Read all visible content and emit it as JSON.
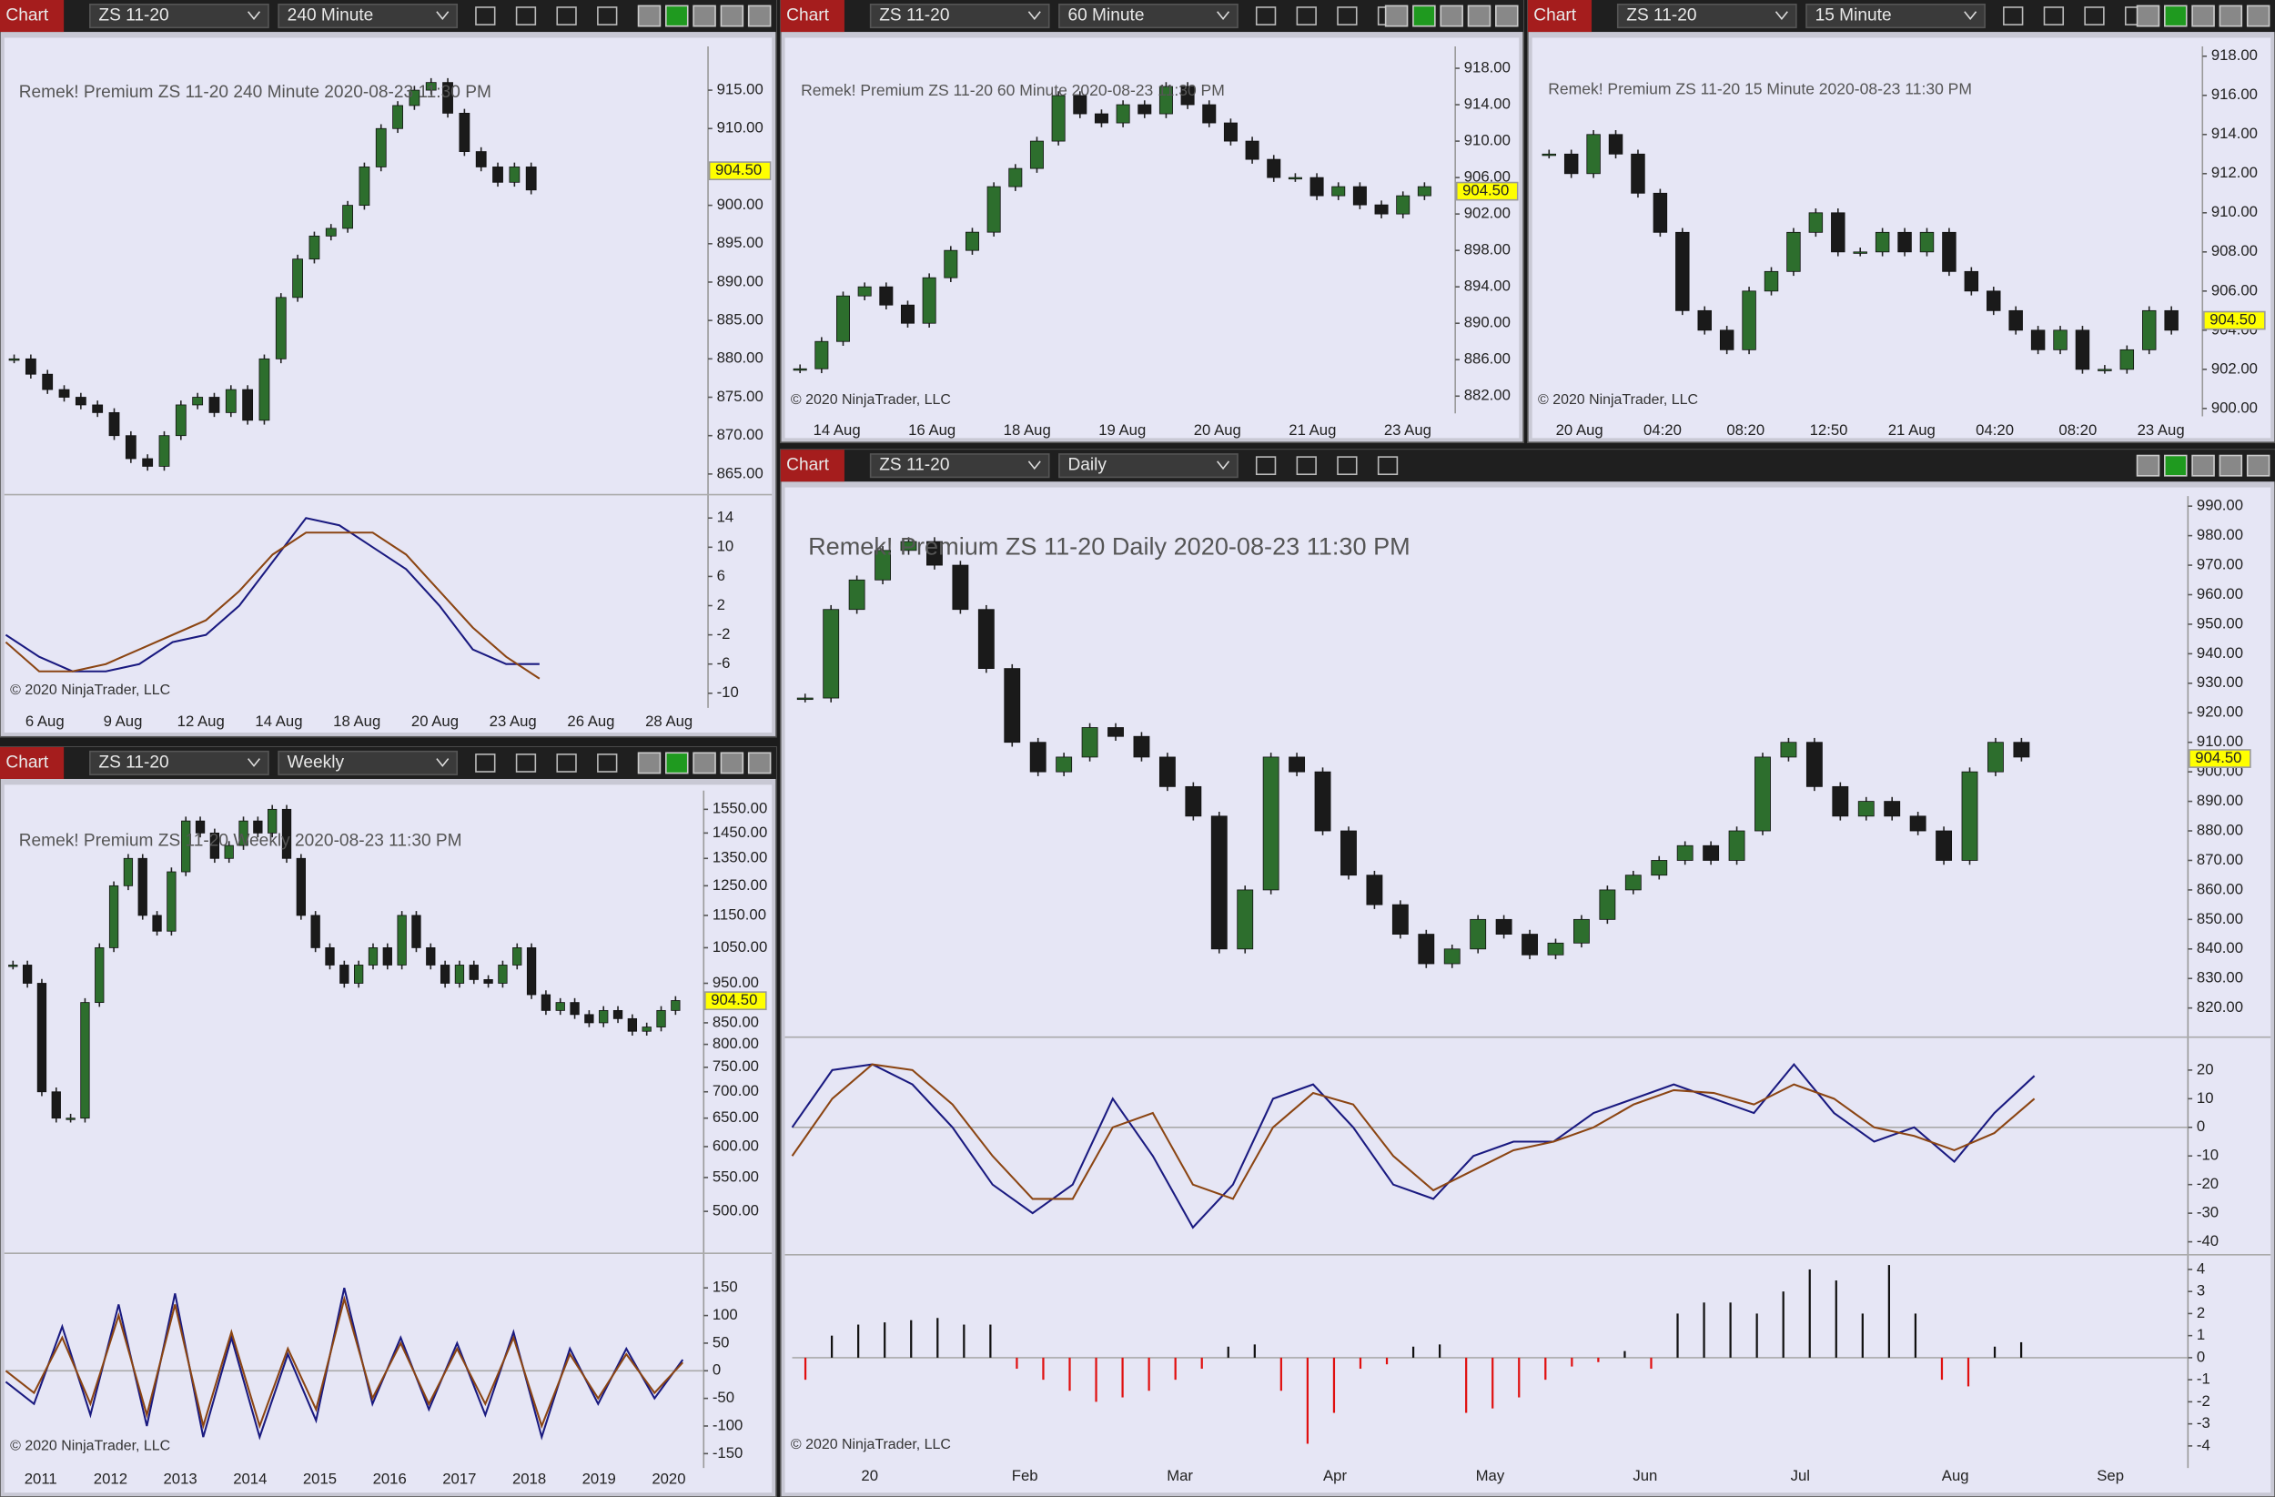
{
  "windows": [
    {
      "app_label": "Chart",
      "instrument": "ZS 11-20",
      "interval": "240 Minute",
      "header": "Remek!  Premium  ZS 11-20  240 Minute  2020-08-23 11:30 PM",
      "copyright": "© 2020 NinjaTrader, LLC",
      "last_price": {
        "value": 904.5,
        "label": "904.50"
      },
      "time_labels": [
        "6 Aug",
        "9 Aug",
        "12 Aug",
        "14 Aug",
        "18 Aug",
        "20 Aug",
        "23 Aug",
        "26 Aug",
        "28 Aug"
      ],
      "price": {
        "ylim": [
          862.5,
          920.7
        ],
        "yticks": [
          {
            "value": 915,
            "label": "915.00"
          },
          {
            "value": 910,
            "label": "910.00"
          },
          {
            "value": 900,
            "label": "900.00"
          },
          {
            "value": 895,
            "label": "895.00"
          },
          {
            "value": 890,
            "label": "890.00"
          },
          {
            "value": 885,
            "label": "885.00"
          },
          {
            "value": 880,
            "label": "880.00"
          },
          {
            "value": 875,
            "label": "875.00"
          },
          {
            "value": 870,
            "label": "870.00"
          },
          {
            "value": 865,
            "label": "865.00"
          }
        ],
        "closes": [
          880,
          878,
          876,
          875,
          874,
          873,
          870,
          867,
          866,
          870,
          874,
          875,
          873,
          876,
          872,
          880,
          888,
          893,
          896,
          897,
          900,
          905,
          910,
          913,
          915,
          916,
          912,
          907,
          905,
          903,
          905,
          902
        ]
      },
      "oscillator": {
        "ylim": [
          -12,
          17
        ],
        "yticks": [
          14,
          10,
          6,
          2,
          -2,
          -6,
          -10
        ],
        "lines": [
          {
            "color": "#1a1a80",
            "values": [
              -2,
              -5,
              -7,
              -7,
              -6,
              -3,
              -2,
              2,
              8,
              14,
              13,
              10,
              7,
              2,
              -4,
              -6,
              -6
            ]
          },
          {
            "color": "#8b4513",
            "values": [
              -3,
              -7,
              -7,
              -6,
              -4,
              -2,
              0,
              4,
              9,
              12,
              12,
              12,
              9,
              4,
              -1,
              -5,
              -8
            ]
          }
        ]
      }
    },
    {
      "app_label": "Chart",
      "instrument": "ZS 11-20",
      "interval": "60 Minute",
      "header": "Remek!  Premium  ZS 11-20  60 Minute  2020-08-23 11:30 PM",
      "copyright": "© 2020 NinjaTrader, LLC",
      "last_price": {
        "value": 904.5,
        "label": "904.50"
      },
      "time_labels": [
        "14 Aug",
        "16 Aug",
        "18 Aug",
        "19 Aug",
        "20 Aug",
        "21 Aug",
        "23 Aug"
      ],
      "price": {
        "ylim": [
          880.1,
          920.4
        ],
        "yticks": [
          {
            "value": 918,
            "label": "918.00"
          },
          {
            "value": 914,
            "label": "914.00"
          },
          {
            "value": 910,
            "label": "910.00"
          },
          {
            "value": 906,
            "label": "906.00"
          },
          {
            "value": 902,
            "label": "902.00"
          },
          {
            "value": 898,
            "label": "898.00"
          },
          {
            "value": 894,
            "label": "894.00"
          },
          {
            "value": 890,
            "label": "890.00"
          },
          {
            "value": 886,
            "label": "886.00"
          },
          {
            "value": 882,
            "label": "882.00"
          }
        ],
        "closes": [
          885,
          888,
          893,
          894,
          892,
          890,
          895,
          898,
          900,
          905,
          907,
          910,
          915,
          913,
          912,
          914,
          913,
          916,
          914,
          912,
          910,
          908,
          906,
          906,
          904,
          905,
          903,
          902,
          904,
          905
        ]
      }
    },
    {
      "app_label": "Chart",
      "instrument": "ZS 11-20",
      "interval": "15 Minute",
      "header": "Remek!  Premium  ZS 11-20  15 Minute  2020-08-23 11:30 PM",
      "copyright": "© 2020 NinjaTrader, LLC",
      "last_price": {
        "value": 904.5,
        "label": "904.50"
      },
      "time_labels": [
        "20 Aug",
        "04:20",
        "08:20",
        "12:50",
        "21 Aug",
        "04:20",
        "08:20",
        "23 Aug"
      ],
      "price": {
        "ylim": [
          899.6,
          918.5
        ],
        "yticks": [
          {
            "value": 918,
            "label": "918.00"
          },
          {
            "value": 916,
            "label": "916.00"
          },
          {
            "value": 914,
            "label": "914.00"
          },
          {
            "value": 912,
            "label": "912.00"
          },
          {
            "value": 910,
            "label": "910.00"
          },
          {
            "value": 908,
            "label": "908.00"
          },
          {
            "value": 906,
            "label": "906.00"
          },
          {
            "value": 904,
            "label": "904.00"
          },
          {
            "value": 902,
            "label": "902.00"
          },
          {
            "value": 900,
            "label": "900.00"
          }
        ],
        "closes": [
          913,
          912,
          914,
          913,
          911,
          909,
          905,
          904,
          903,
          906,
          907,
          909,
          910,
          908,
          908,
          909,
          908,
          909,
          907,
          906,
          905,
          904,
          903,
          904,
          902,
          902,
          903,
          905,
          904
        ]
      }
    },
    {
      "app_label": "Chart",
      "instrument": "ZS 11-20",
      "interval": "Weekly",
      "header": "Remek!  Premium  ZS 11-20  Weekly  2020-08-23 11:30 PM",
      "copyright": "© 2020 NinjaTrader, LLC",
      "last_price": {
        "value": 904.5,
        "label": "904.50"
      },
      "time_labels": [
        "2011",
        "2012",
        "2013",
        "2014",
        "2015",
        "2016",
        "2017",
        "2018",
        "2019",
        "2020"
      ],
      "price": {
        "log": true,
        "ylim": [
          448,
          1634
        ],
        "yticks": [
          {
            "value": 1550,
            "label": "1550.00"
          },
          {
            "value": 1450,
            "label": "1450.00"
          },
          {
            "value": 1350,
            "label": "1350.00"
          },
          {
            "value": 1250,
            "label": "1250.00"
          },
          {
            "value": 1150,
            "label": "1150.00"
          },
          {
            "value": 1050,
            "label": "1050.00"
          },
          {
            "value": 950,
            "label": "950.00"
          },
          {
            "value": 850,
            "label": "850.00"
          },
          {
            "value": 800,
            "label": "800.00"
          },
          {
            "value": 750,
            "label": "750.00"
          },
          {
            "value": 700,
            "label": "700.00"
          },
          {
            "value": 650,
            "label": "650.00"
          },
          {
            "value": 600,
            "label": "600.00"
          },
          {
            "value": 550,
            "label": "550.00"
          },
          {
            "value": 500,
            "label": "500.00"
          }
        ],
        "closes": [
          1000,
          950,
          700,
          650,
          650,
          900,
          1050,
          1250,
          1350,
          1150,
          1100,
          1300,
          1500,
          1450,
          1350,
          1400,
          1500,
          1450,
          1550,
          1350,
          1150,
          1050,
          1000,
          950,
          1000,
          1050,
          1000,
          1150,
          1050,
          1000,
          950,
          1000,
          960,
          950,
          1000,
          1050,
          920,
          880,
          900,
          870,
          850,
          880,
          860,
          830,
          840,
          880,
          905
        ]
      },
      "oscillator": {
        "ylim": [
          -176,
          210
        ],
        "yticks": [
          150,
          100,
          50,
          0,
          -50,
          -100,
          -150
        ],
        "lines": [
          {
            "color": "#1a1a80",
            "values": [
              -20,
              -60,
              80,
              -80,
              120,
              -100,
              140,
              -120,
              60,
              -120,
              30,
              -90,
              150,
              -60,
              60,
              -70,
              50,
              -80,
              70,
              -120,
              40,
              -60,
              40,
              -50,
              20
            ]
          },
          {
            "color": "#8b4513",
            "values": [
              0,
              -40,
              60,
              -60,
              100,
              -80,
              120,
              -100,
              70,
              -100,
              40,
              -70,
              130,
              -50,
              50,
              -60,
              40,
              -60,
              60,
              -100,
              30,
              -50,
              30,
              -40,
              15
            ]
          }
        ]
      }
    },
    {
      "app_label": "Chart",
      "instrument": "ZS 11-20",
      "interval": "Daily",
      "header": "Remek!  Premium  ZS 11-20  Daily  2020-08-23 11:30 PM",
      "copyright": "© 2020 NinjaTrader, LLC",
      "last_price": {
        "value": 904.5,
        "label": "904.50"
      },
      "time_labels": [
        "20",
        "Feb",
        "Mar",
        "Apr",
        "May",
        "Jun",
        "Jul",
        "Aug",
        "Sep"
      ],
      "price": {
        "ylim": [
          811.6,
          993.4
        ],
        "yticks": [
          {
            "value": 990,
            "label": "990.00"
          },
          {
            "value": 980,
            "label": "980.00"
          },
          {
            "value": 970,
            "label": "970.00"
          },
          {
            "value": 960,
            "label": "960.00"
          },
          {
            "value": 950,
            "label": "950.00"
          },
          {
            "value": 940,
            "label": "940.00"
          },
          {
            "value": 930,
            "label": "930.00"
          },
          {
            "value": 920,
            "label": "920.00"
          },
          {
            "value": 910,
            "label": "910.00"
          },
          {
            "value": 900,
            "label": "900.00"
          },
          {
            "value": 890,
            "label": "890.00"
          },
          {
            "value": 880,
            "label": "880.00"
          },
          {
            "value": 870,
            "label": "870.00"
          },
          {
            "value": 860,
            "label": "860.00"
          },
          {
            "value": 850,
            "label": "850.00"
          },
          {
            "value": 840,
            "label": "840.00"
          },
          {
            "value": 830,
            "label": "830.00"
          },
          {
            "value": 820,
            "label": "820.00"
          }
        ],
        "closes": [
          925,
          955,
          965,
          975,
          978,
          970,
          955,
          935,
          910,
          900,
          905,
          915,
          912,
          905,
          895,
          885,
          840,
          860,
          905,
          900,
          880,
          865,
          855,
          845,
          835,
          840,
          850,
          845,
          838,
          842,
          850,
          860,
          865,
          870,
          875,
          870,
          880,
          905,
          910,
          895,
          885,
          890,
          885,
          880,
          870,
          900,
          910,
          905
        ]
      },
      "oscillator": {
        "ylim": [
          -43,
          31
        ],
        "yticks": [
          20,
          10,
          0,
          -10,
          -20,
          -30,
          -40
        ],
        "lines": [
          {
            "color": "#1a1a80",
            "values": [
              0,
              20,
              22,
              15,
              0,
              -20,
              -30,
              -20,
              10,
              -10,
              -35,
              -20,
              10,
              15,
              0,
              -20,
              -25,
              -10,
              -5,
              -5,
              5,
              10,
              15,
              10,
              5,
              22,
              5,
              -5,
              0,
              -12,
              5,
              18
            ]
          },
          {
            "color": "#8b4513",
            "values": [
              -10,
              10,
              22,
              20,
              8,
              -10,
              -25,
              -25,
              0,
              5,
              -20,
              -25,
              0,
              12,
              8,
              -10,
              -22,
              -15,
              -8,
              -5,
              0,
              8,
              13,
              12,
              8,
              15,
              10,
              0,
              -3,
              -8,
              -2,
              10
            ]
          }
        ]
      },
      "histogram": {
        "ylim": [
          -5,
          4.6
        ],
        "yticks": [
          4,
          3,
          2,
          1,
          0,
          -1,
          -2,
          -3,
          -4
        ],
        "values": [
          -1,
          1,
          1.5,
          1.6,
          1.7,
          1.8,
          1.5,
          1.5,
          -0.5,
          -1,
          -1.5,
          -2,
          -1.8,
          -1.5,
          -1,
          -0.5,
          0.5,
          0.6,
          -1.5,
          -3.9,
          -2.5,
          -0.5,
          -0.3,
          0.5,
          0.6,
          -2.5,
          -2.3,
          -1.8,
          -1,
          -0.4,
          -0.2,
          0.3,
          -0.5,
          2,
          2.5,
          2.5,
          2,
          3,
          4,
          3.5,
          2,
          4.2,
          2,
          -1,
          -1.3,
          0.5,
          0.7
        ]
      }
    }
  ]
}
